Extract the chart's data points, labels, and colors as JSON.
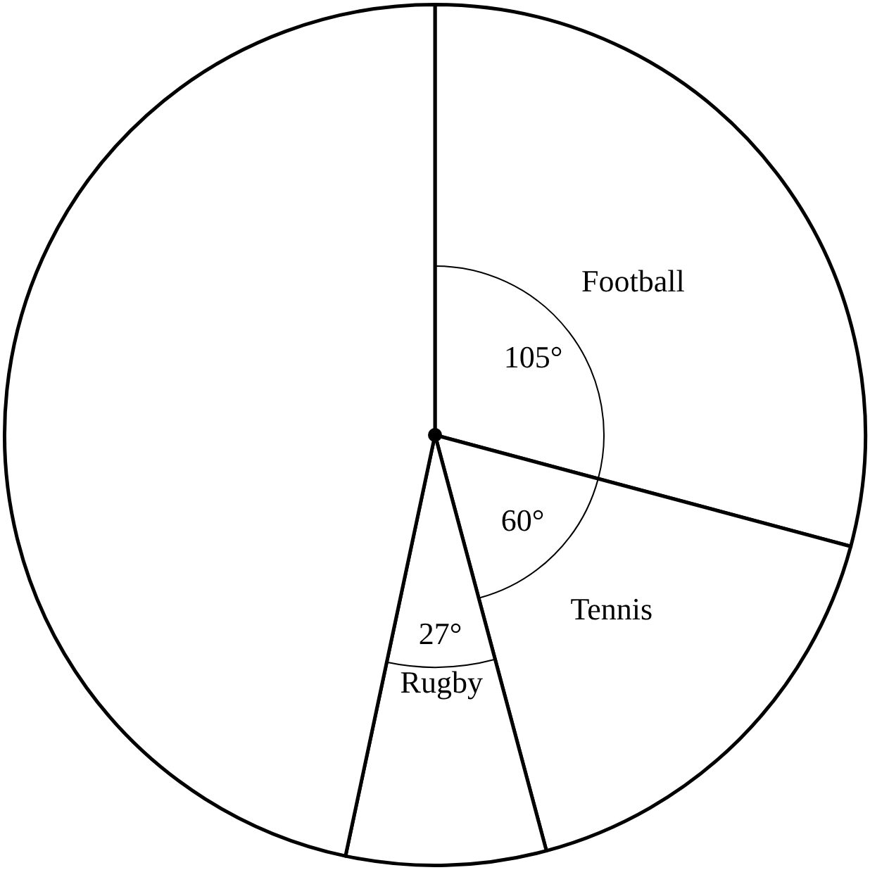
{
  "chart_data": {
    "type": "pie",
    "categories": [
      "Football",
      "Tennis",
      "Rugby",
      null
    ],
    "values": [
      105,
      60,
      27,
      168
    ],
    "value_labels": [
      "105°",
      "60°",
      "27°",
      null
    ],
    "colors": [
      "#ffffff",
      "#ffffff",
      "#ffffff",
      "#ffffff"
    ],
    "legend": false
  }
}
